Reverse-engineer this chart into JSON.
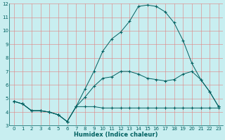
{
  "title": "",
  "xlabel": "Humidex (Indice chaleur)",
  "xlim": [
    -0.5,
    23.5
  ],
  "ylim": [
    3,
    12
  ],
  "xticks": [
    0,
    1,
    2,
    3,
    4,
    5,
    6,
    7,
    8,
    9,
    10,
    11,
    12,
    13,
    14,
    15,
    16,
    17,
    18,
    19,
    20,
    21,
    22,
    23
  ],
  "yticks": [
    3,
    4,
    5,
    6,
    7,
    8,
    9,
    10,
    11,
    12
  ],
  "background_color": "#c8eef0",
  "line_color": "#006060",
  "grid_color": "#e08080",
  "series": [
    {
      "x": [
        0,
        1,
        2,
        3,
        4,
        5,
        6,
        7,
        8,
        9,
        10,
        11,
        12,
        13,
        14,
        15,
        16,
        17,
        18,
        19,
        20,
        21,
        22,
        23
      ],
      "y": [
        4.8,
        4.6,
        4.1,
        4.1,
        4.0,
        3.8,
        3.3,
        4.4,
        4.4,
        4.4,
        4.3,
        4.3,
        4.3,
        4.3,
        4.3,
        4.3,
        4.3,
        4.3,
        4.3,
        4.3,
        4.3,
        4.3,
        4.3,
        4.3
      ]
    },
    {
      "x": [
        0,
        1,
        2,
        3,
        4,
        5,
        6,
        7,
        8,
        9,
        10,
        11,
        12,
        13,
        14,
        15,
        16,
        17,
        18,
        19,
        20,
        21,
        22,
        23
      ],
      "y": [
        4.8,
        4.6,
        4.1,
        4.1,
        4.0,
        3.8,
        3.3,
        4.4,
        5.7,
        7.0,
        8.5,
        9.4,
        9.9,
        10.7,
        11.8,
        11.9,
        11.8,
        11.4,
        10.6,
        9.3,
        7.6,
        6.4,
        5.5,
        4.4
      ]
    },
    {
      "x": [
        0,
        1,
        2,
        3,
        4,
        5,
        6,
        7,
        8,
        9,
        10,
        11,
        12,
        13,
        14,
        15,
        16,
        17,
        18,
        19,
        20,
        21,
        22,
        23
      ],
      "y": [
        4.8,
        4.6,
        4.1,
        4.1,
        4.0,
        3.8,
        3.3,
        4.4,
        5.1,
        5.9,
        6.5,
        6.6,
        7.0,
        7.0,
        6.8,
        6.5,
        6.4,
        6.3,
        6.4,
        6.8,
        7.0,
        6.4,
        5.5,
        4.4
      ]
    }
  ],
  "tick_fontsize": 5.0,
  "xlabel_fontsize": 6.0,
  "linewidth": 0.7,
  "markersize": 3.5
}
